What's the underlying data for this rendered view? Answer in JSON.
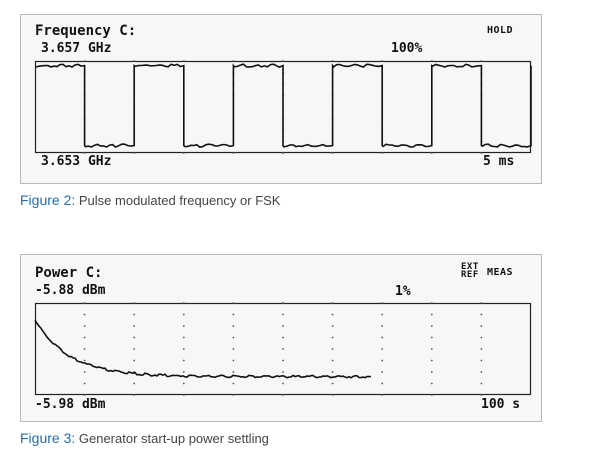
{
  "figure2": {
    "screen": {
      "title": "Frequency C:",
      "top_value": "3.657 GHz",
      "percent": "100%",
      "status": "HOLD",
      "bottom_value": "3.653 GHz",
      "time_span": "5 ms"
    },
    "caption": {
      "label": "Figure 2:",
      "text": "Pulse modulated frequency or FSK"
    }
  },
  "figure3": {
    "screen": {
      "title": "Power C:",
      "top_value": "-5.88 dBm",
      "percent": "1%",
      "ext_line1": "EXT",
      "ext_line2": "REF",
      "status": "MEAS",
      "bottom_value": "-5.98 dBm",
      "time_span": "100 s"
    },
    "caption": {
      "label": "Figure 3:",
      "text": "Generator start-up power settling"
    }
  },
  "chart_data": [
    {
      "type": "line",
      "trace": "square-wave",
      "ylim": [
        "3.653 GHz",
        "3.657 GHz"
      ],
      "periods": 5,
      "high_fraction": 0.95,
      "low_fraction": 0.08,
      "grid": true
    },
    {
      "type": "line",
      "trace": "exponential-settling",
      "ylim": [
        "-5.98 dBm",
        "-5.88 dBm"
      ],
      "start_fraction": 0.82,
      "settled_fraction": 0.2,
      "trace_end_fraction": 0.68,
      "grid": true
    }
  ]
}
